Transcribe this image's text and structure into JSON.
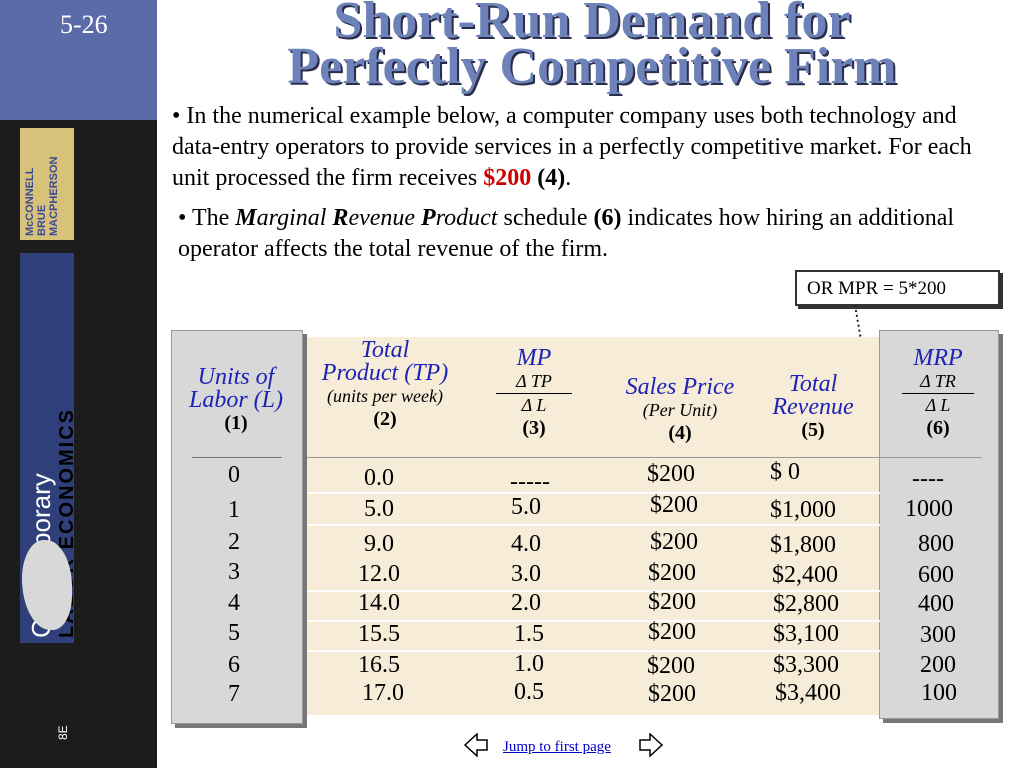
{
  "slide": {
    "number": "5-26"
  },
  "book": {
    "authors": "McCONNELL\nBRUE\nMACPHERSON",
    "title_line1": "Contemporary",
    "title_line2": "LABOR ECONOMICS",
    "edition": "8E"
  },
  "title": {
    "line1": "Short-Run Demand for",
    "line2": "Perfectly Competitive Firm"
  },
  "bullets": {
    "b1_pre": "• In the numerical example below, a computer company uses both technology and data-entry operators to provide services in a perfectly competitive market.  For each unit processed the firm receives ",
    "b1_price": "$200",
    "b1_ref": "(4)",
    "b1_post": ".",
    "b2_pre": "• The ",
    "b2_M": "M",
    "b2_arginal": "arginal ",
    "b2_R": "R",
    "b2_evenue": "evenue ",
    "b2_P": "P",
    "b2_roduct": "roduct",
    "b2_mid": " schedule ",
    "b2_ref": "(6)",
    "b2_post": " indicates how hiring an additional operator affects the total revenue of the firm."
  },
  "callout": {
    "text": "OR MPR = 5*200"
  },
  "table": {
    "headers": {
      "c1_a": "Units of",
      "c1_b": "Labor (L)",
      "c1_num": "(1)",
      "c2_a": "Total",
      "c2_b": "Product (TP)",
      "c2_note": "(units per week)",
      "c2_num": "(2)",
      "c3_a": "MP",
      "c3_num_top": "Δ TP",
      "c3_den": "Δ L",
      "c3_num": "(3)",
      "c4_a": "Sales Price",
      "c4_note": "(Per Unit)",
      "c4_num": "(4)",
      "c5_a": "Total",
      "c5_b": "Revenue",
      "c5_num": "(5)",
      "c6_a": "MRP",
      "c6_num_top": "Δ TR",
      "c6_den": "Δ L",
      "c6_num": "(6)"
    },
    "rows": [
      {
        "l": "0",
        "tp": "0.0",
        "mp": "-----",
        "p": "$200",
        "tr": "$       0",
        "mrp": "----"
      },
      {
        "l": "1",
        "tp": "5.0",
        "mp": "5.0",
        "p": "$200",
        "tr": "$1,000",
        "mrp": "1000"
      },
      {
        "l": "2",
        "tp": "9.0",
        "mp": "4.0",
        "p": "$200",
        "tr": "$1,800",
        "mrp": "800"
      },
      {
        "l": "3",
        "tp": "12.0",
        "mp": "3.0",
        "p": "$200",
        "tr": "$2,400",
        "mrp": "600"
      },
      {
        "l": "4",
        "tp": "14.0",
        "mp": "2.0",
        "p": "$200",
        "tr": "$2,800",
        "mrp": "400"
      },
      {
        "l": "5",
        "tp": "15.5",
        "mp": "1.5",
        "p": "$200",
        "tr": "$3,100",
        "mrp": "300"
      },
      {
        "l": "6",
        "tp": "16.5",
        "mp": "1.0",
        "p": "$200",
        "tr": "$3,300",
        "mrp": "200"
      },
      {
        "l": "7",
        "tp": "17.0",
        "mp": "0.5",
        "p": "$200",
        "tr": "$3,400",
        "mrp": "100"
      }
    ]
  },
  "nav": {
    "jump_label": "Jump to first page"
  }
}
